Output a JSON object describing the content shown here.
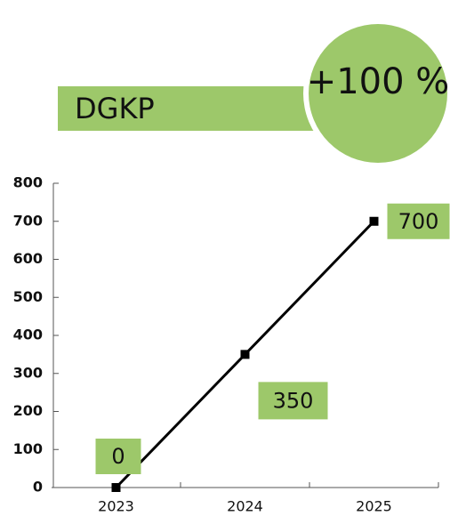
{
  "chart_data": {
    "type": "line",
    "title": "DGKP",
    "annotation": "+100 %",
    "categories": [
      "2023",
      "2024",
      "2025"
    ],
    "values": [
      0,
      350,
      700
    ],
    "color": "#000000",
    "label_color": "#9dc86a",
    "ylim": [
      0,
      800
    ],
    "yticks": [
      0,
      100,
      200,
      300,
      400,
      500,
      600,
      700,
      800
    ],
    "grid": false
  }
}
